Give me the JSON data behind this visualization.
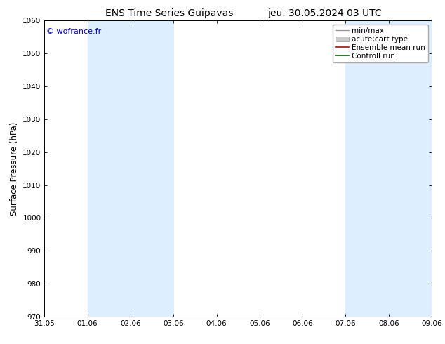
{
  "title_left": "ENS Time Series Guipavas",
  "title_right": "jeu. 30.05.2024 03 UTC",
  "ylabel": "Surface Pressure (hPa)",
  "ylim": [
    970,
    1060
  ],
  "yticks": [
    970,
    980,
    990,
    1000,
    1010,
    1020,
    1030,
    1040,
    1050,
    1060
  ],
  "xtick_labels": [
    "31.05",
    "01.06",
    "02.06",
    "03.06",
    "04.06",
    "05.06",
    "06.06",
    "07.06",
    "08.06",
    "09.06"
  ],
  "watermark": "© wofrance.fr",
  "watermark_color": "#0000cc",
  "background_color": "#ffffff",
  "plot_bg_color": "#ffffff",
  "shaded_regions": [
    {
      "xstart": 1,
      "xend": 3,
      "color": "#dceeff"
    },
    {
      "xstart": 7,
      "xend": 9,
      "color": "#dceeff"
    }
  ],
  "legend_entries": [
    {
      "label": "min/max",
      "color": "#999999",
      "lw": 1.0,
      "style": "line"
    },
    {
      "label": "acute;cart type",
      "color": "#cccccc",
      "lw": 6,
      "style": "rect"
    },
    {
      "label": "Ensemble mean run",
      "color": "#cc0000",
      "lw": 1.2,
      "style": "line"
    },
    {
      "label": "Controll run",
      "color": "#006600",
      "lw": 1.2,
      "style": "line"
    }
  ],
  "title_fontsize": 10,
  "tick_fontsize": 7.5,
  "ylabel_fontsize": 8.5,
  "legend_fontsize": 7.5
}
